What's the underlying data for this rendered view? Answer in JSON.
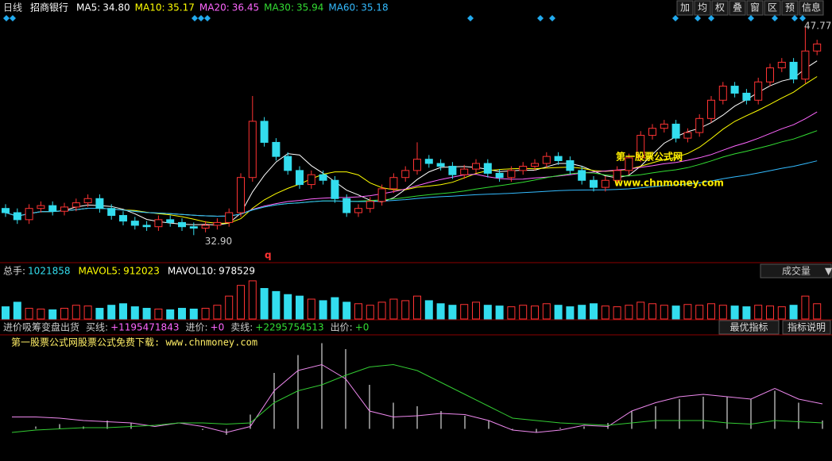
{
  "header": {
    "period": "日线",
    "stock": "招商银行",
    "ma": [
      {
        "name": "MA5:",
        "value": "34.80",
        "color": "#ffffff"
      },
      {
        "name": "MA10:",
        "value": "35.17",
        "color": "#ffff00"
      },
      {
        "name": "MA20:",
        "value": "36.45",
        "color": "#ff66ff"
      },
      {
        "name": "MA30:",
        "value": "35.94",
        "color": "#33dd33"
      },
      {
        "name": "MA60:",
        "value": "35.18",
        "color": "#33bbff"
      }
    ],
    "buttons": [
      "加",
      "均",
      "权",
      "叠",
      "窗",
      "区",
      "预",
      "信息"
    ]
  },
  "price": {
    "ylim": [
      31.0,
      48.5
    ],
    "high_label": "47.77",
    "low_label": "32.90",
    "marker": "q",
    "ohlc": [
      [
        34.8,
        35.1,
        34.2,
        34.5
      ],
      [
        34.5,
        34.8,
        33.7,
        34.0
      ],
      [
        34.0,
        35.1,
        33.7,
        34.8
      ],
      [
        34.8,
        35.3,
        34.5,
        35.0
      ],
      [
        35.0,
        35.3,
        34.3,
        34.6
      ],
      [
        34.6,
        35.2,
        34.3,
        34.9
      ],
      [
        34.9,
        35.5,
        34.6,
        35.2
      ],
      [
        35.2,
        35.8,
        34.9,
        35.5
      ],
      [
        35.5,
        35.8,
        34.5,
        34.8
      ],
      [
        34.8,
        35.1,
        34.0,
        34.3
      ],
      [
        34.3,
        34.6,
        33.6,
        33.9
      ],
      [
        33.9,
        34.2,
        33.3,
        33.6
      ],
      [
        33.6,
        33.9,
        33.2,
        33.5
      ],
      [
        33.5,
        34.3,
        33.2,
        34.0
      ],
      [
        34.0,
        34.3,
        33.5,
        33.8
      ],
      [
        33.8,
        34.1,
        33.2,
        33.5
      ],
      [
        33.5,
        33.8,
        32.9,
        33.4
      ],
      [
        33.4,
        33.9,
        33.1,
        33.6
      ],
      [
        33.6,
        34.1,
        33.3,
        33.8
      ],
      [
        33.8,
        34.8,
        33.5,
        34.5
      ],
      [
        34.5,
        37.3,
        34.2,
        37.0
      ],
      [
        37.0,
        42.8,
        36.7,
        41.0
      ],
      [
        41.0,
        41.3,
        39.2,
        39.5
      ],
      [
        39.5,
        39.8,
        38.2,
        38.5
      ],
      [
        38.5,
        38.8,
        37.2,
        37.5
      ],
      [
        37.5,
        37.8,
        36.2,
        36.5
      ],
      [
        36.5,
        37.5,
        36.2,
        37.2
      ],
      [
        37.2,
        37.5,
        36.5,
        36.8
      ],
      [
        36.8,
        37.1,
        35.2,
        35.5
      ],
      [
        35.5,
        35.8,
        34.2,
        34.5
      ],
      [
        34.5,
        35.1,
        34.2,
        34.8
      ],
      [
        34.8,
        35.6,
        34.5,
        35.3
      ],
      [
        35.3,
        36.5,
        35.0,
        36.2
      ],
      [
        36.2,
        37.3,
        35.9,
        37.0
      ],
      [
        37.0,
        37.8,
        36.7,
        37.5
      ],
      [
        37.5,
        39.5,
        37.2,
        38.3
      ],
      [
        38.3,
        38.6,
        37.7,
        38.0
      ],
      [
        38.0,
        38.3,
        37.5,
        37.8
      ],
      [
        37.8,
        38.1,
        36.9,
        37.2
      ],
      [
        37.2,
        37.9,
        36.9,
        37.6
      ],
      [
        37.6,
        38.3,
        37.3,
        38.0
      ],
      [
        38.0,
        38.3,
        37.0,
        37.3
      ],
      [
        37.3,
        37.6,
        36.7,
        37.0
      ],
      [
        37.0,
        37.8,
        36.7,
        37.5
      ],
      [
        37.5,
        38.1,
        37.2,
        37.8
      ],
      [
        37.8,
        38.3,
        37.5,
        38.0
      ],
      [
        38.0,
        38.8,
        37.7,
        38.5
      ],
      [
        38.5,
        38.8,
        37.9,
        38.2
      ],
      [
        38.2,
        38.5,
        37.2,
        37.5
      ],
      [
        37.5,
        37.8,
        36.5,
        36.8
      ],
      [
        36.8,
        37.1,
        36.0,
        36.3
      ],
      [
        36.3,
        37.1,
        36.0,
        36.8
      ],
      [
        36.8,
        37.8,
        36.5,
        37.5
      ],
      [
        37.5,
        38.7,
        37.2,
        38.4
      ],
      [
        38.4,
        40.3,
        38.1,
        40.0
      ],
      [
        40.0,
        40.8,
        39.7,
        40.5
      ],
      [
        40.5,
        41.1,
        40.2,
        40.8
      ],
      [
        40.8,
        41.1,
        39.5,
        39.8
      ],
      [
        39.8,
        40.5,
        39.5,
        40.2
      ],
      [
        40.2,
        41.5,
        39.9,
        41.2
      ],
      [
        41.2,
        42.8,
        40.9,
        42.5
      ],
      [
        42.5,
        43.8,
        42.2,
        43.5
      ],
      [
        43.5,
        43.8,
        42.7,
        43.0
      ],
      [
        43.0,
        43.3,
        42.2,
        42.5
      ],
      [
        42.5,
        44.1,
        42.2,
        43.8
      ],
      [
        43.8,
        45.1,
        43.5,
        44.8
      ],
      [
        44.8,
        45.5,
        44.5,
        45.2
      ],
      [
        45.2,
        45.5,
        43.7,
        44.0
      ],
      [
        44.0,
        47.77,
        43.7,
        46.0
      ],
      [
        46.0,
        46.8,
        45.7,
        46.5
      ]
    ],
    "watermark": "第一股票公式网",
    "watermark_url": "www.chnmoney.com"
  },
  "volume": {
    "total": "总手:",
    "total_value": "1021858",
    "mavol5": "MAVOL5:",
    "mavol5_value": "912023",
    "mavol10": "MAVOL10:",
    "mavol10_value": "978529",
    "selector": "成交量",
    "ylim": [
      0,
      2600000
    ],
    "values": [
      800000,
      1100000,
      700000,
      650000,
      600000,
      700000,
      900000,
      850000,
      700000,
      900000,
      1000000,
      800000,
      700000,
      650000,
      600000,
      700000,
      650000,
      700000,
      900000,
      1500000,
      2200000,
      2500000,
      2000000,
      1800000,
      1600000,
      1500000,
      1300000,
      1200000,
      1400000,
      1100000,
      1000000,
      900000,
      1100000,
      1300000,
      1200000,
      1500000,
      1200000,
      1000000,
      900000,
      950000,
      1100000,
      900000,
      850000,
      800000,
      900000,
      850000,
      1000000,
      900000,
      800000,
      900000,
      1000000,
      850000,
      800000,
      900000,
      1100000,
      1000000,
      900000,
      850000,
      950000,
      900000,
      1000000,
      900000,
      850000,
      800000,
      900000,
      850000,
      800000,
      900000,
      1500000,
      1000000
    ]
  },
  "indicator": {
    "name": "进价吸筹变盘出货",
    "buy": "买线:",
    "buy_value": "+1195471843",
    "in": "进价:",
    "in_value": "+0",
    "sell": "卖线:",
    "sell_value": "+2295754513",
    "out": "出价:",
    "out_value": "+0",
    "buttons": [
      "最优指标",
      "指标说明"
    ],
    "caption": "第一股票公式网股票公式免费下载: www.chnmoney.com",
    "ylim": [
      0,
      100
    ],
    "purple": [
      33,
      33,
      32,
      30,
      29,
      28,
      25,
      28,
      25,
      20,
      25,
      55,
      72,
      77,
      65,
      38,
      33,
      34,
      36,
      35,
      30,
      22,
      20,
      22,
      26,
      25,
      38,
      45,
      50,
      52,
      50,
      48,
      57,
      48,
      44
    ],
    "green": [
      20,
      22,
      23,
      24,
      24,
      25,
      26,
      28,
      28,
      27,
      28,
      45,
      55,
      60,
      68,
      75,
      77,
      72,
      62,
      52,
      42,
      32,
      30,
      28,
      27,
      26,
      28,
      30,
      30,
      30,
      28,
      27,
      30,
      29,
      28
    ],
    "bars": [
      0,
      25,
      27,
      25,
      30,
      28,
      0,
      0,
      22,
      18,
      35,
      70,
      85,
      95,
      90,
      60,
      45,
      42,
      38,
      34,
      30,
      22,
      20,
      24,
      25,
      28,
      38,
      42,
      48,
      50,
      50,
      48,
      55,
      45,
      30
    ]
  }
}
